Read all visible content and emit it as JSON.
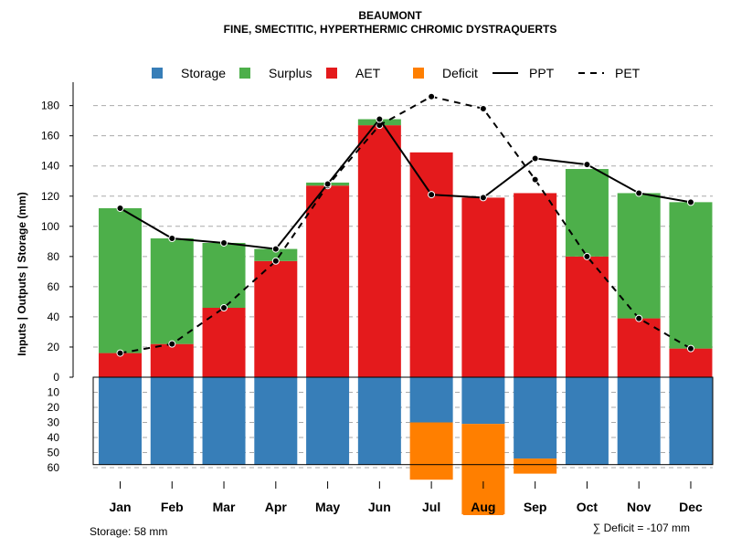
{
  "chart_data": {
    "type": "bar",
    "title": "BEAUMONT",
    "subtitle": "FINE, SMECTITIC, HYPERTHERMIC CHROMIC DYSTRAQUERTS",
    "ylabel": "Inputs | Outputs | Storage    (mm)",
    "categories": [
      "Jan",
      "Feb",
      "Mar",
      "Apr",
      "May",
      "Jun",
      "Jul",
      "Aug",
      "Sep",
      "Oct",
      "Nov",
      "Dec"
    ],
    "upper_ylim": [
      0,
      190
    ],
    "upper_ticks": [
      0,
      20,
      40,
      60,
      80,
      100,
      120,
      140,
      160,
      180
    ],
    "lower_ylim": [
      0,
      60
    ],
    "lower_ticks": [
      10,
      20,
      30,
      40,
      50,
      60
    ],
    "storage_capacity": 58,
    "series": [
      {
        "name": "AET",
        "color": "#E41A1C",
        "values": [
          16,
          22,
          46,
          77,
          127,
          167,
          149,
          119,
          122,
          80,
          39,
          19
        ]
      },
      {
        "name": "Surplus",
        "color": "#4DAF4A",
        "values": [
          96,
          70,
          43,
          8,
          2,
          4,
          0,
          0,
          0,
          58,
          83,
          97
        ]
      },
      {
        "name": "Storage",
        "color": "#377EB8",
        "values": [
          58,
          58,
          58,
          58,
          58,
          58,
          30,
          31,
          54,
          58,
          58,
          58
        ]
      },
      {
        "name": "Deficit",
        "color": "#FF7F00",
        "values": [
          0,
          0,
          0,
          0,
          0,
          0,
          38,
          60,
          10,
          0,
          0,
          0
        ]
      },
      {
        "name": "PPT",
        "color": "#000000",
        "style": "solid",
        "values": [
          112,
          92,
          89,
          85,
          128,
          171,
          121,
          119,
          145,
          141,
          122,
          116
        ]
      },
      {
        "name": "PET",
        "color": "#000000",
        "style": "dashed",
        "values": [
          16,
          22,
          46,
          77,
          127,
          167,
          186,
          178,
          131,
          80,
          39,
          19
        ]
      }
    ],
    "legend": [
      "Storage",
      "Surplus",
      "AET",
      "Deficit",
      "PPT",
      "PET"
    ],
    "legend_position": "top",
    "highlighted_month": "Aug",
    "storage_note": "Storage: 58 mm",
    "deficit_note": "∑ Deficit = -107 mm"
  }
}
